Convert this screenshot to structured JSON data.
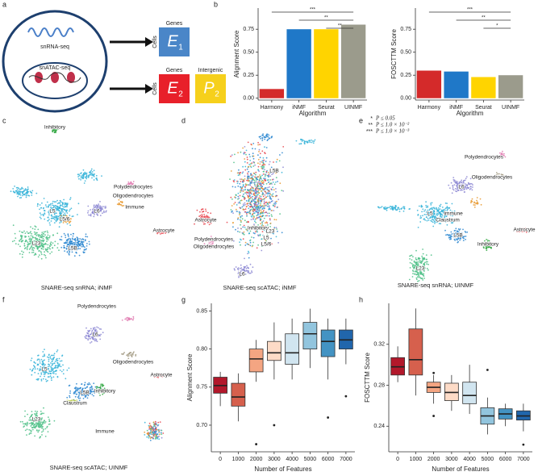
{
  "panel_labels": [
    "a",
    "b",
    "c",
    "d",
    "e",
    "f",
    "g",
    "h"
  ],
  "schematic": {
    "rna": "snRNA-seq",
    "atac": "snATAC-seq",
    "e1": {
      "top": "Genes",
      "side": "Cells",
      "letter": "E",
      "sub": "1"
    },
    "e2": {
      "top": "Genes",
      "side": "Cells",
      "letter": "E",
      "sub": "2"
    },
    "p2": {
      "top": "Intergenic",
      "letter": "P",
      "sub": "2"
    }
  },
  "significance": [
    {
      "stars": "*",
      "text": "P ≤ 0.05"
    },
    {
      "stars": "**",
      "text": "P ≤ 1.0 × 10⁻²"
    },
    {
      "stars": "***",
      "text": "P ≤ 1.0 × 10⁻³"
    }
  ],
  "chart_data": [
    {
      "type": "bar",
      "ylabel": "Alignment Score",
      "xlabel": "Algorithm",
      "categories": [
        "Harmony",
        "iNMF",
        "Seurat",
        "UINMF"
      ],
      "values": [
        0.1,
        0.75,
        0.75,
        0.8
      ],
      "colors": [
        "#d42a2a",
        "#1f78c8",
        "#ffd400",
        "#9b9b8c"
      ],
      "ylim": [
        -0.02,
        0.98
      ],
      "yticks": [
        {
          "value": 0,
          "label": "0.00"
        },
        0.25,
        {
          "value": 0.5,
          "label": "0.50"
        },
        0.75
      ],
      "annotations": [
        "***",
        "**",
        "**"
      ]
    },
    {
      "type": "bar",
      "ylabel": "FOSCTTM Score",
      "xlabel": "Algorithm",
      "categories": [
        "Harmony",
        "iNMF",
        "Seurat",
        "UINMF"
      ],
      "values": [
        0.3,
        0.29,
        0.23,
        0.25
      ],
      "colors": [
        "#d42a2a",
        "#1f78c8",
        "#ffd400",
        "#9b9b8c"
      ],
      "ylim": [
        -0.02,
        0.98
      ],
      "yticks": [
        {
          "value": 0,
          "label": "0.00"
        },
        0.25,
        {
          "value": 0.5,
          "label": "0.50"
        },
        0.75
      ],
      "annotations": [
        "***",
        "**",
        "*"
      ]
    },
    {
      "type": "box",
      "ylabel": "Alignment Score",
      "xlabel": "Number of Features",
      "categories": [
        "0",
        "1000",
        "2000",
        "3000",
        "4000",
        "5000",
        "6000",
        "7000"
      ],
      "colors": [
        "#b2182b",
        "#d6604d",
        "#f4a582",
        "#fddbc7",
        "#d1e5f0",
        "#92c5de",
        "#4393c3",
        "#2166ac"
      ],
      "boxes": [
        {
          "min": 0.725,
          "q1": 0.742,
          "median": 0.752,
          "q3": 0.763,
          "max": 0.77,
          "outliers": []
        },
        {
          "min": 0.705,
          "q1": 0.725,
          "median": 0.737,
          "q3": 0.755,
          "max": 0.768,
          "outliers": []
        },
        {
          "min": 0.757,
          "q1": 0.77,
          "median": 0.787,
          "q3": 0.8,
          "max": 0.812,
          "outliers": [
            0.675
          ]
        },
        {
          "min": 0.76,
          "q1": 0.785,
          "median": 0.795,
          "q3": 0.81,
          "max": 0.835,
          "outliers": [
            0.7
          ]
        },
        {
          "min": 0.76,
          "q1": 0.78,
          "median": 0.795,
          "q3": 0.82,
          "max": 0.84,
          "outliers": []
        },
        {
          "min": 0.775,
          "q1": 0.8,
          "median": 0.82,
          "q3": 0.835,
          "max": 0.853,
          "outliers": []
        },
        {
          "min": 0.76,
          "q1": 0.79,
          "median": 0.81,
          "q3": 0.825,
          "max": 0.84,
          "outliers": [
            0.71
          ]
        },
        {
          "min": 0.78,
          "q1": 0.8,
          "median": 0.812,
          "q3": 0.825,
          "max": 0.84,
          "outliers": [
            0.738
          ]
        }
      ],
      "ylim": [
        0.665,
        0.86
      ],
      "yticks": [
        {
          "value": 0.7,
          "label": "0.70"
        },
        0.75,
        {
          "value": 0.8,
          "label": "0.80"
        },
        0.85
      ]
    },
    {
      "type": "box",
      "ylabel": "FOSCTTM Score",
      "xlabel": "Number of Features",
      "categories": [
        "0",
        "1000",
        "2000",
        "3000",
        "4000",
        "5000",
        "6000",
        "7000"
      ],
      "colors": [
        "#b2182b",
        "#d6604d",
        "#f4a582",
        "#fddbc7",
        "#d1e5f0",
        "#92c5de",
        "#4393c3",
        "#2166ac"
      ],
      "boxes": [
        {
          "min": 0.283,
          "q1": 0.29,
          "median": 0.298,
          "q3": 0.307,
          "max": 0.318,
          "outliers": []
        },
        {
          "min": 0.27,
          "q1": 0.29,
          "median": 0.305,
          "q3": 0.335,
          "max": 0.355,
          "outliers": []
        },
        {
          "min": 0.262,
          "q1": 0.273,
          "median": 0.278,
          "q3": 0.283,
          "max": 0.29,
          "outliers": [
            0.292,
            0.25
          ]
        },
        {
          "min": 0.255,
          "q1": 0.265,
          "median": 0.273,
          "q3": 0.282,
          "max": 0.29,
          "outliers": []
        },
        {
          "min": 0.252,
          "q1": 0.262,
          "median": 0.27,
          "q3": 0.283,
          "max": 0.3,
          "outliers": []
        },
        {
          "min": 0.232,
          "q1": 0.242,
          "median": 0.25,
          "q3": 0.258,
          "max": 0.268,
          "outliers": [
            0.295
          ]
        },
        {
          "min": 0.24,
          "q1": 0.247,
          "median": 0.252,
          "q3": 0.257,
          "max": 0.262,
          "outliers": []
        },
        {
          "min": 0.235,
          "q1": 0.246,
          "median": 0.25,
          "q3": 0.255,
          "max": 0.262,
          "outliers": [
            0.222
          ]
        }
      ],
      "ylim": [
        0.215,
        0.36
      ],
      "yticks": [
        0.24,
        0.28,
        0.32
      ]
    }
  ],
  "umaps": [
    {
      "title": "SNARE-seq snRNA; iNMF",
      "labels": [
        "Inhibitory",
        "Polydendrocytes",
        "Oligodendrocytes",
        "Immune",
        "L6",
        "L5",
        "L5/6",
        "Astrocyte",
        "L23",
        "L5B"
      ]
    },
    {
      "title": "SNARE-seq scATAC; iNMF",
      "labels": [
        "L5B",
        "Astrocyte",
        "Inhibitory",
        "L23",
        "L5",
        "L5/6",
        "Polydendrocytes",
        "Oligodendrocytes",
        "L6"
      ]
    },
    {
      "title": "SNARE-seq snRNA; UINMF",
      "labels": [
        "Polydendrocytes",
        "Oligodendrocytes",
        "L6",
        "L5",
        "Immune",
        "Claustrum",
        "Astrocyte",
        "L5B",
        "Inhibitory",
        "L23"
      ]
    },
    {
      "title": "SNARE-seq scATAC; UINMF",
      "labels": [
        "Polydendrocytes",
        "L6",
        "Oligodendrocytes",
        "Astrocyte",
        "L5",
        "Inhibitory",
        "L5B",
        "Claustrum",
        "Immune",
        "L23"
      ]
    }
  ]
}
